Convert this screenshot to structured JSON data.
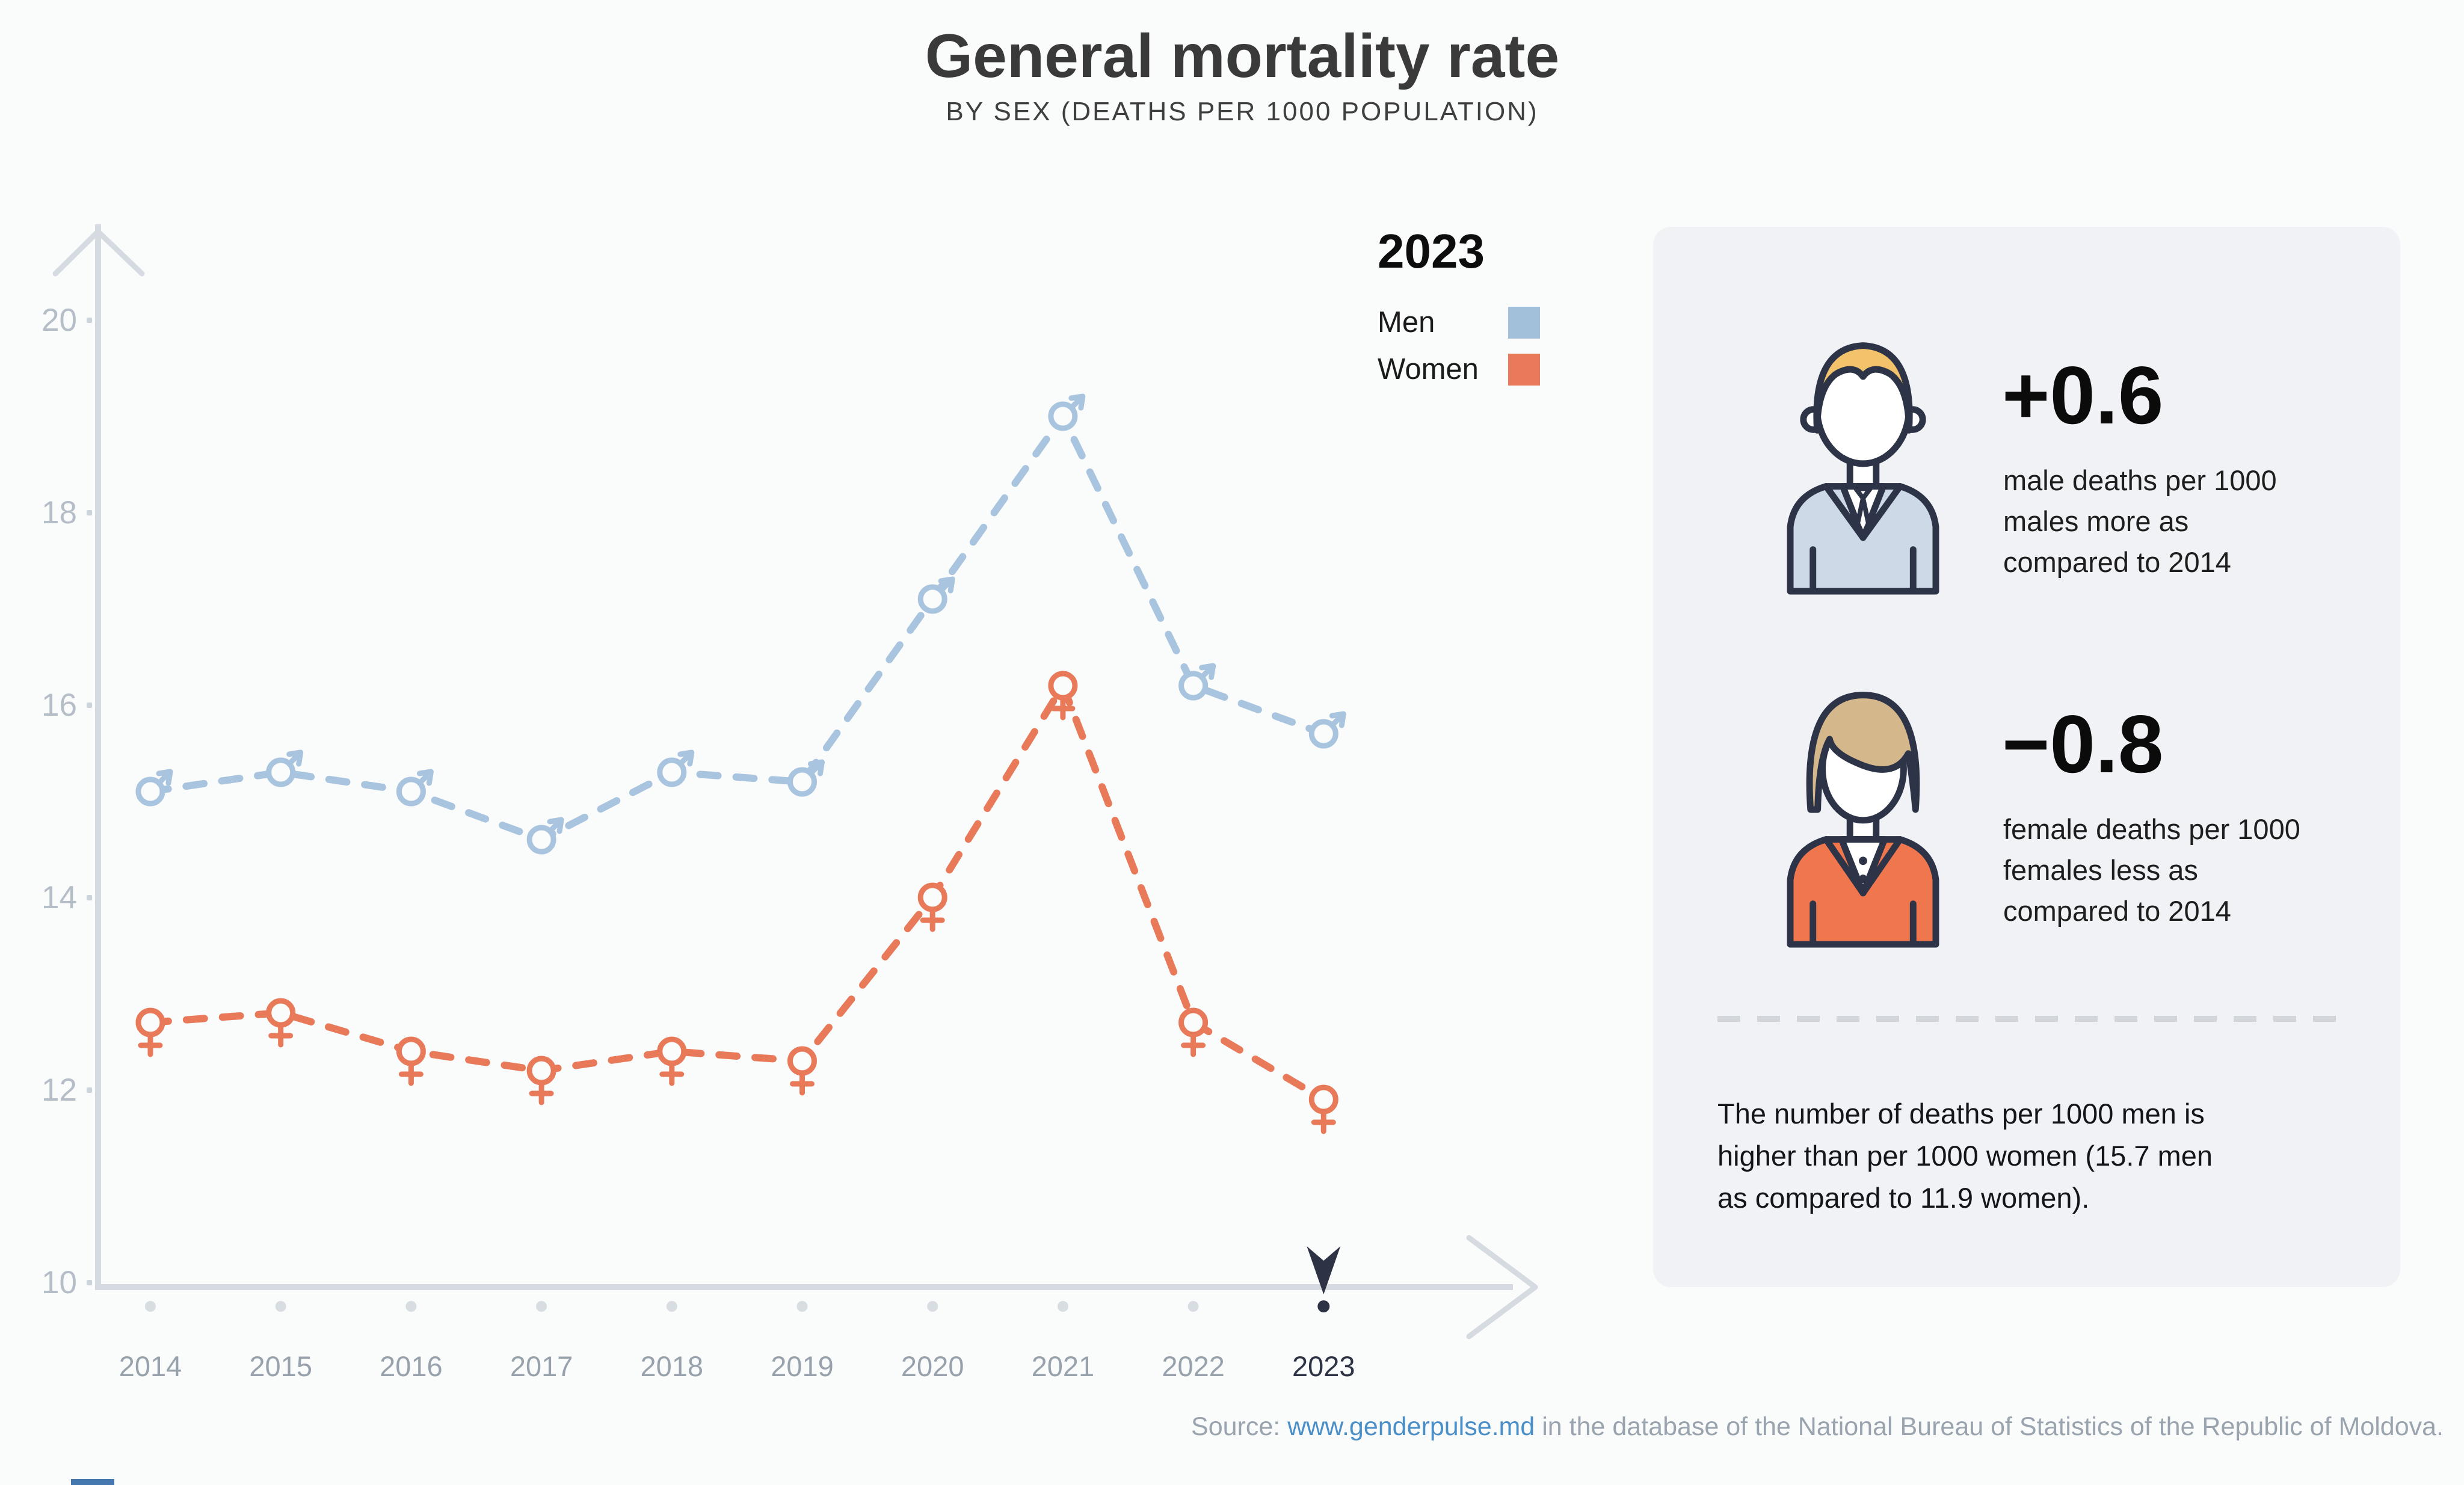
{
  "title": "General mortality rate",
  "subtitle": "BY SEX (DEATHS PER 1000 POPULATION)",
  "legend": {
    "year": "2023",
    "men_label": "Men",
    "women_label": "Women"
  },
  "chart_data": {
    "type": "line",
    "title": "General mortality rate by sex (deaths per 1000 population)",
    "categories": [
      2014,
      2015,
      2016,
      2017,
      2018,
      2019,
      2020,
      2021,
      2022,
      2023
    ],
    "series": [
      {
        "name": "Men",
        "marker": "male",
        "color": "#a9c4de",
        "values": [
          15.1,
          15.3,
          15.1,
          14.6,
          15.3,
          15.2,
          17.1,
          19.0,
          16.2,
          15.7
        ]
      },
      {
        "name": "Women",
        "marker": "female",
        "color": "#e87a5a",
        "values": [
          12.7,
          12.8,
          12.4,
          12.2,
          12.4,
          12.3,
          14.0,
          16.2,
          12.7,
          11.9
        ]
      }
    ],
    "yticks": [
      20,
      18,
      16,
      14,
      12,
      10
    ],
    "ylim": [
      10,
      20.5
    ],
    "xlabel": "",
    "ylabel": "",
    "grid": false,
    "line_style": "dashed",
    "legend_position": "top-right",
    "selected_year": 2023
  },
  "panel": {
    "male_stat": {
      "value": "+0.6",
      "desc": "male deaths per 1000 males more as compared to 2014"
    },
    "female_stat": {
      "value": "−0.8",
      "desc": "female deaths per 1000 females less as compared to 2014"
    },
    "summary": "The number of deaths per 1000 men is higher than per 1000 women (15.7 men as compared to 11.9 women)."
  },
  "footer": {
    "prefix": "Source: ",
    "link": "www.genderpulse.md",
    "suffix": " in the database of the National Bureau of Statistics of the Republic of Moldova."
  },
  "colors": {
    "men": "#a3c0db",
    "women": "#e87a5b",
    "men_line": "#a9c4de",
    "women_line": "#e8795a",
    "axis": "#d5dbe1",
    "tick_label": "#b5bec7",
    "year_label": "#98a2ac",
    "selected_year": "#2d3345",
    "dot": "#d8dde2",
    "background": "#fafbfb",
    "panel_background": "#f0f2f5"
  }
}
